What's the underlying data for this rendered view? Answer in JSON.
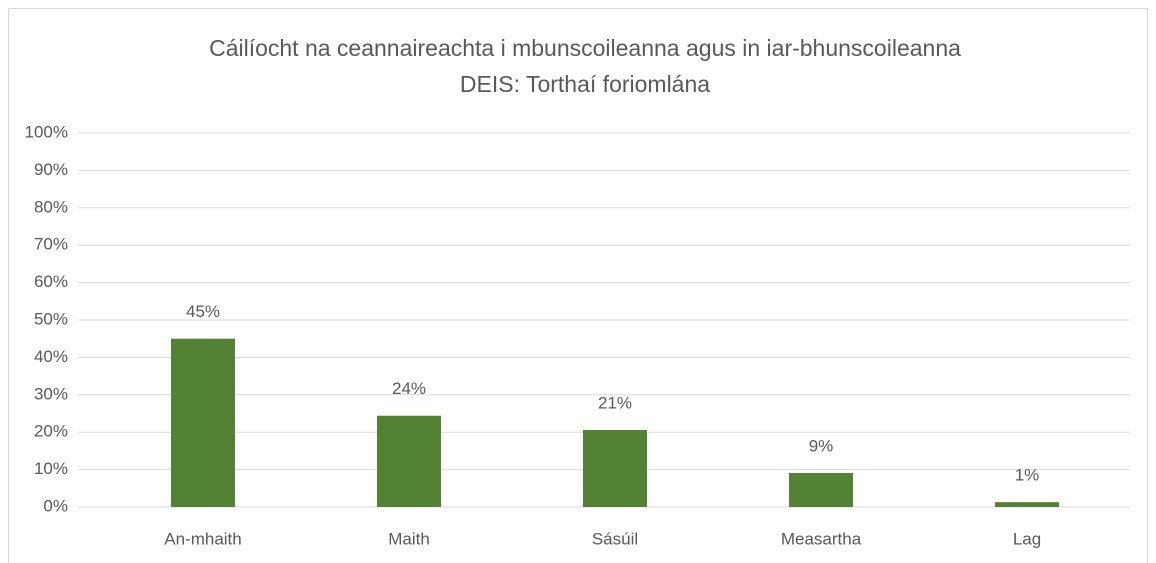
{
  "chart_data": {
    "type": "bar",
    "title": [
      "Cáilíocht na ceannaireachta i mbunscoileanna agus in iar-bhunscoileanna",
      "DEIS: Torthaí foriomlána"
    ],
    "categories": [
      "An-mhaith",
      "Maith",
      "Sásúil",
      "Measartha",
      "Lag"
    ],
    "values": [
      45,
      24.4,
      20.6,
      9.1,
      1.3
    ],
    "value_labels": [
      "45%",
      "24%",
      "21%",
      "9%",
      "1%"
    ],
    "color": "#548235",
    "ylim": [
      0,
      100
    ],
    "yticks": [
      {
        "value": 0,
        "label": "0%"
      },
      {
        "value": 10,
        "label": "10%"
      },
      {
        "value": 20,
        "label": "20%"
      },
      {
        "value": 30,
        "label": "30%"
      },
      {
        "value": 40,
        "label": "40%"
      },
      {
        "value": 50,
        "label": "50%"
      },
      {
        "value": 60,
        "label": "60%"
      },
      {
        "value": 70,
        "label": "70%"
      },
      {
        "value": 80,
        "label": "80%"
      },
      {
        "value": 90,
        "label": "90%"
      },
      {
        "value": 100,
        "label": "100%"
      }
    ],
    "grid": true
  }
}
